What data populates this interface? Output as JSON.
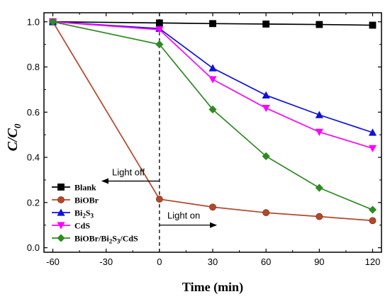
{
  "chart_data": {
    "type": "line",
    "xlabel": "Time (min)",
    "ylabel_main": "C/C",
    "ylabel_sub": "0",
    "xlim": [
      -65,
      125
    ],
    "ylim": [
      -0.02,
      1.04
    ],
    "xticks": [
      -60,
      -30,
      0,
      30,
      60,
      90,
      120
    ],
    "yticks": [
      0.0,
      0.2,
      0.4,
      0.6,
      0.8,
      1.0
    ],
    "xtick_labels": [
      "-60",
      "-30",
      "0",
      "30",
      "60",
      "90",
      "120"
    ],
    "ytick_labels": [
      "0.0",
      "0.2",
      "0.4",
      "0.6",
      "0.8",
      "1.0"
    ],
    "x": [
      -60,
      0,
      30,
      60,
      90,
      120
    ],
    "series": [
      {
        "name": "Blank",
        "legend": [
          "Blank"
        ],
        "color": "#000000",
        "marker": "square",
        "values": [
          1.0,
          0.995,
          0.992,
          0.99,
          0.988,
          0.985
        ]
      },
      {
        "name": "BiOBr",
        "legend": [
          "BiOBr"
        ],
        "color": "#b5472a",
        "marker": "circle",
        "values": [
          1.0,
          0.215,
          0.18,
          0.155,
          0.138,
          0.12
        ]
      },
      {
        "name": "Bi2S3",
        "legend": [
          "Bi",
          "2",
          "S",
          "3"
        ],
        "color": "#1010e0",
        "marker": "triangle-up",
        "values": [
          1.0,
          0.97,
          0.795,
          0.675,
          0.588,
          0.51
        ]
      },
      {
        "name": "CdS",
        "legend": [
          "CdS"
        ],
        "color": "#ff00ff",
        "marker": "triangle-down",
        "values": [
          1.0,
          0.965,
          0.745,
          0.618,
          0.512,
          0.44
        ]
      },
      {
        "name": "BiOBr/Bi2S3/CdS",
        "legend": [
          "BiOBr/Bi",
          "2",
          "S",
          "3",
          "/CdS"
        ],
        "color": "#2e8b22",
        "marker": "diamond",
        "values": [
          1.0,
          0.9,
          0.612,
          0.405,
          0.265,
          0.168
        ]
      }
    ],
    "annotations": {
      "light_off": "Light off",
      "light_on": "Light on",
      "divider_x": 0,
      "light_off_arrow_y": 0.295,
      "light_on_arrow_y": 0.1
    },
    "legend_position": "bottom-left",
    "grid": false
  }
}
